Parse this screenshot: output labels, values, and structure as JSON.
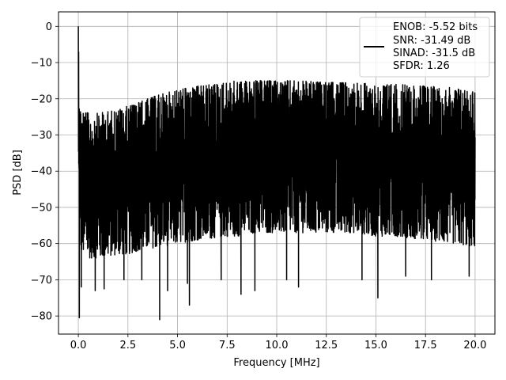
{
  "chart_data": {
    "type": "line",
    "xlabel": "Frequency [MHz]",
    "ylabel": "PSD [dB]",
    "xlim": [
      -1.0,
      21.0
    ],
    "ylim": [
      -85,
      4
    ],
    "xticks": [
      0.0,
      2.5,
      5.0,
      7.5,
      10.0,
      12.5,
      15.0,
      17.5,
      20.0
    ],
    "xtick_labels": [
      "0.0",
      "2.5",
      "5.0",
      "7.5",
      "10.0",
      "12.5",
      "15.0",
      "17.5",
      "20.0"
    ],
    "yticks": [
      0,
      -10,
      -20,
      -30,
      -40,
      -50,
      -60,
      -70,
      -80
    ],
    "ytick_labels": [
      "0",
      "−10",
      "−20",
      "−30",
      "−40",
      "−50",
      "−60",
      "−70",
      "−80"
    ],
    "grid": true,
    "legend_placement": "top-right",
    "series": [
      {
        "color": "#000000",
        "envelope": {
          "x": [
            0.0,
            0.1,
            0.5,
            1.0,
            2.0,
            2.5,
            3.0,
            4.0,
            5.0,
            6.0,
            7.5,
            8.0,
            9.0,
            10.0,
            11.0,
            12.5,
            14.0,
            15.0,
            16.0,
            17.5,
            19.0,
            20.0
          ],
          "max": [
            0.0,
            -22,
            -24,
            -24,
            -23,
            -22,
            -21,
            -19,
            -17.5,
            -16.5,
            -15.5,
            -15,
            -15,
            -15,
            -15,
            -15.5,
            -15.5,
            -16,
            -16,
            -16.5,
            -17,
            -17.5
          ],
          "min": [
            -46,
            -62,
            -64,
            -64,
            -63,
            -63,
            -62,
            -61,
            -60,
            -59,
            -58,
            -58,
            -57,
            -57,
            -57,
            -57,
            -57,
            -58,
            -58,
            -59,
            -60,
            -61
          ]
        },
        "peak": {
          "x": 0.0,
          "y": 0.0
        },
        "dips": [
          {
            "x": 0.05,
            "y": -80.5
          },
          {
            "x": 0.15,
            "y": -72
          },
          {
            "x": 0.85,
            "y": -73
          },
          {
            "x": 1.3,
            "y": -72.5
          },
          {
            "x": 2.3,
            "y": -70
          },
          {
            "x": 3.2,
            "y": -70
          },
          {
            "x": 4.1,
            "y": -81
          },
          {
            "x": 4.5,
            "y": -73
          },
          {
            "x": 5.5,
            "y": -71
          },
          {
            "x": 5.6,
            "y": -77
          },
          {
            "x": 7.2,
            "y": -70
          },
          {
            "x": 8.2,
            "y": -74
          },
          {
            "x": 8.9,
            "y": -73
          },
          {
            "x": 10.5,
            "y": -70
          },
          {
            "x": 11.1,
            "y": -72
          },
          {
            "x": 14.3,
            "y": -70
          },
          {
            "x": 15.1,
            "y": -75
          },
          {
            "x": 16.5,
            "y": -69
          },
          {
            "x": 17.8,
            "y": -70
          },
          {
            "x": 19.7,
            "y": -69
          }
        ]
      }
    ],
    "legend": {
      "lines": [
        "ENOB: -5.52 bits",
        "SNR: -31.49 dB",
        "SINAD: -31.5 dB",
        "SFDR: 1.26"
      ]
    }
  }
}
